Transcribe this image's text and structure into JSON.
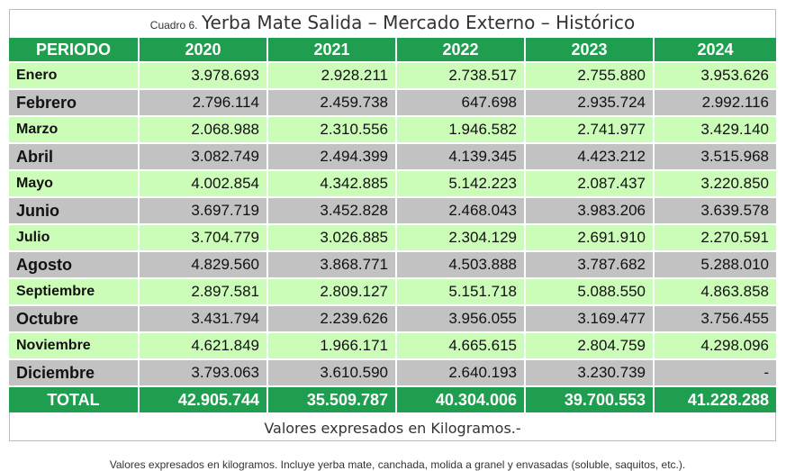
{
  "title": {
    "prefix": "Cuadro 6.",
    "main": "Yerba Mate Salida  – Mercado Externo – Histórico"
  },
  "table": {
    "headers": [
      "PERIODO",
      "2020",
      "2021",
      "2022",
      "2023",
      "2024"
    ],
    "rows": [
      [
        "Enero",
        "3.978.693",
        "2.928.211",
        "2.738.517",
        "2.755.880",
        "3.953.626"
      ],
      [
        "Febrero",
        "2.796.114",
        "2.459.738",
        "647.698",
        "2.935.724",
        "2.992.116"
      ],
      [
        "Marzo",
        "2.068.988",
        "2.310.556",
        "1.946.582",
        "2.741.977",
        "3.429.140"
      ],
      [
        "Abril",
        "3.082.749",
        "2.494.399",
        "4.139.345",
        "4.423.212",
        "3.515.968"
      ],
      [
        "Mayo",
        "4.002.854",
        "4.342.885",
        "5.142.223",
        "2.087.437",
        "3.220.850"
      ],
      [
        "Junio",
        "3.697.719",
        "3.452.828",
        "2.468.043",
        "3.983.206",
        "3.639.578"
      ],
      [
        "Julio",
        "3.704.779",
        "3.026.885",
        "2.304.129",
        "2.691.910",
        "2.270.591"
      ],
      [
        "Agosto",
        "4.829.560",
        "3.868.771",
        "4.503.888",
        "3.787.682",
        "5.288.010"
      ],
      [
        "Septiembre",
        "2.897.581",
        "2.809.127",
        "5.151.718",
        "5.088.550",
        "4.863.858"
      ],
      [
        "Octubre",
        "3.431.794",
        "2.239.626",
        "3.956.055",
        "3.169.477",
        "3.756.455"
      ],
      [
        "Noviembre",
        "4.621.849",
        "1.966.171",
        "4.665.615",
        "2.804.759",
        "4.298.096"
      ],
      [
        "Diciembre",
        "3.793.063",
        "3.610.590",
        "2.640.193",
        "3.230.739",
        "-"
      ]
    ],
    "total": [
      "TOTAL",
      "42.905.744",
      "35.509.787",
      "40.304.006",
      "39.700.553",
      "41.228.288"
    ]
  },
  "units_note": "Valores expresados en Kilogramos.-",
  "footnote": "Valores expresados en kilogramos. Incluye yerba mate, canchada, molida a granel y envasadas (soluble, saquitos, etc.).",
  "colors": {
    "header_green": "#1e9e4e",
    "row_light_green": "#ccfdb8",
    "row_gray": "#c2c2c2"
  }
}
